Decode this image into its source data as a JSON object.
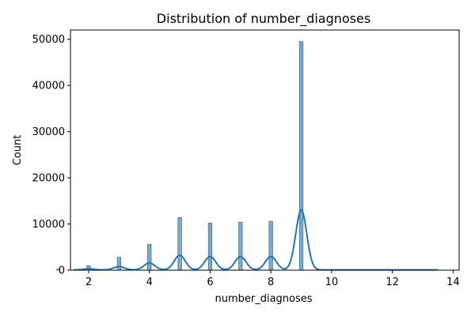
{
  "chart_data": {
    "type": "bar",
    "title": "Distribution of number_diagnoses",
    "xlabel": "number_diagnoses",
    "ylabel": "Count",
    "xlim": [
      1.4,
      14.2
    ],
    "ylim": [
      0,
      52000
    ],
    "x_ticks": [
      2,
      4,
      6,
      8,
      10,
      12,
      14
    ],
    "y_ticks": [
      0,
      10000,
      20000,
      30000,
      40000,
      50000
    ],
    "bin_width": 0.12,
    "grid": false,
    "legend": "none",
    "colors": {
      "bar_fill": "#7fa9cc",
      "bar_edge": "#2b5f8a",
      "kde_line": "#1f77b4"
    },
    "series": [
      {
        "kind": "histogram",
        "x": [
          1,
          2,
          3,
          4,
          5,
          6,
          7,
          8,
          9,
          10,
          11,
          12,
          13
        ],
        "values": [
          200,
          1000,
          2800,
          5600,
          11400,
          10200,
          10400,
          10600,
          49500,
          20,
          10,
          10,
          10
        ]
      },
      {
        "kind": "kde",
        "amplitude": [
          250,
          700,
          1500,
          3200,
          2900,
          2900,
          2900,
          13000
        ],
        "centers": [
          2,
          3,
          4,
          5,
          6,
          7,
          8,
          9
        ],
        "sigma": 0.18,
        "baseline": 60
      }
    ]
  }
}
